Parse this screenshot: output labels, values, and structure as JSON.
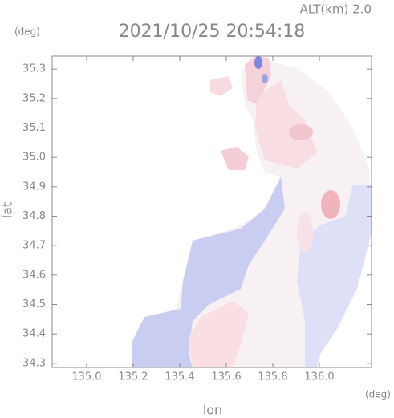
{
  "chart_data": {
    "type": "image",
    "title": "2021/10/25 20:54:18",
    "subtitle": "ALT(km) 2.0",
    "y_unit": "(deg)",
    "x_unit": "(deg)",
    "x_label": "lon",
    "y_label": "lat",
    "xlim": [
      134.852,
      136.224
    ],
    "ylim": [
      34.286,
      35.344
    ],
    "xticks": [
      {
        "value": 135,
        "label": "135.0"
      },
      135.2,
      135.4,
      135.6,
      135.8,
      {
        "value": 136,
        "label": "136.0"
      }
    ],
    "yticks": [
      35.3,
      35.2,
      35.1,
      {
        "value": 35,
        "label": "35.0"
      },
      34.9,
      34.8,
      34.7,
      34.6,
      34.5,
      34.4,
      34.3
    ]
  }
}
